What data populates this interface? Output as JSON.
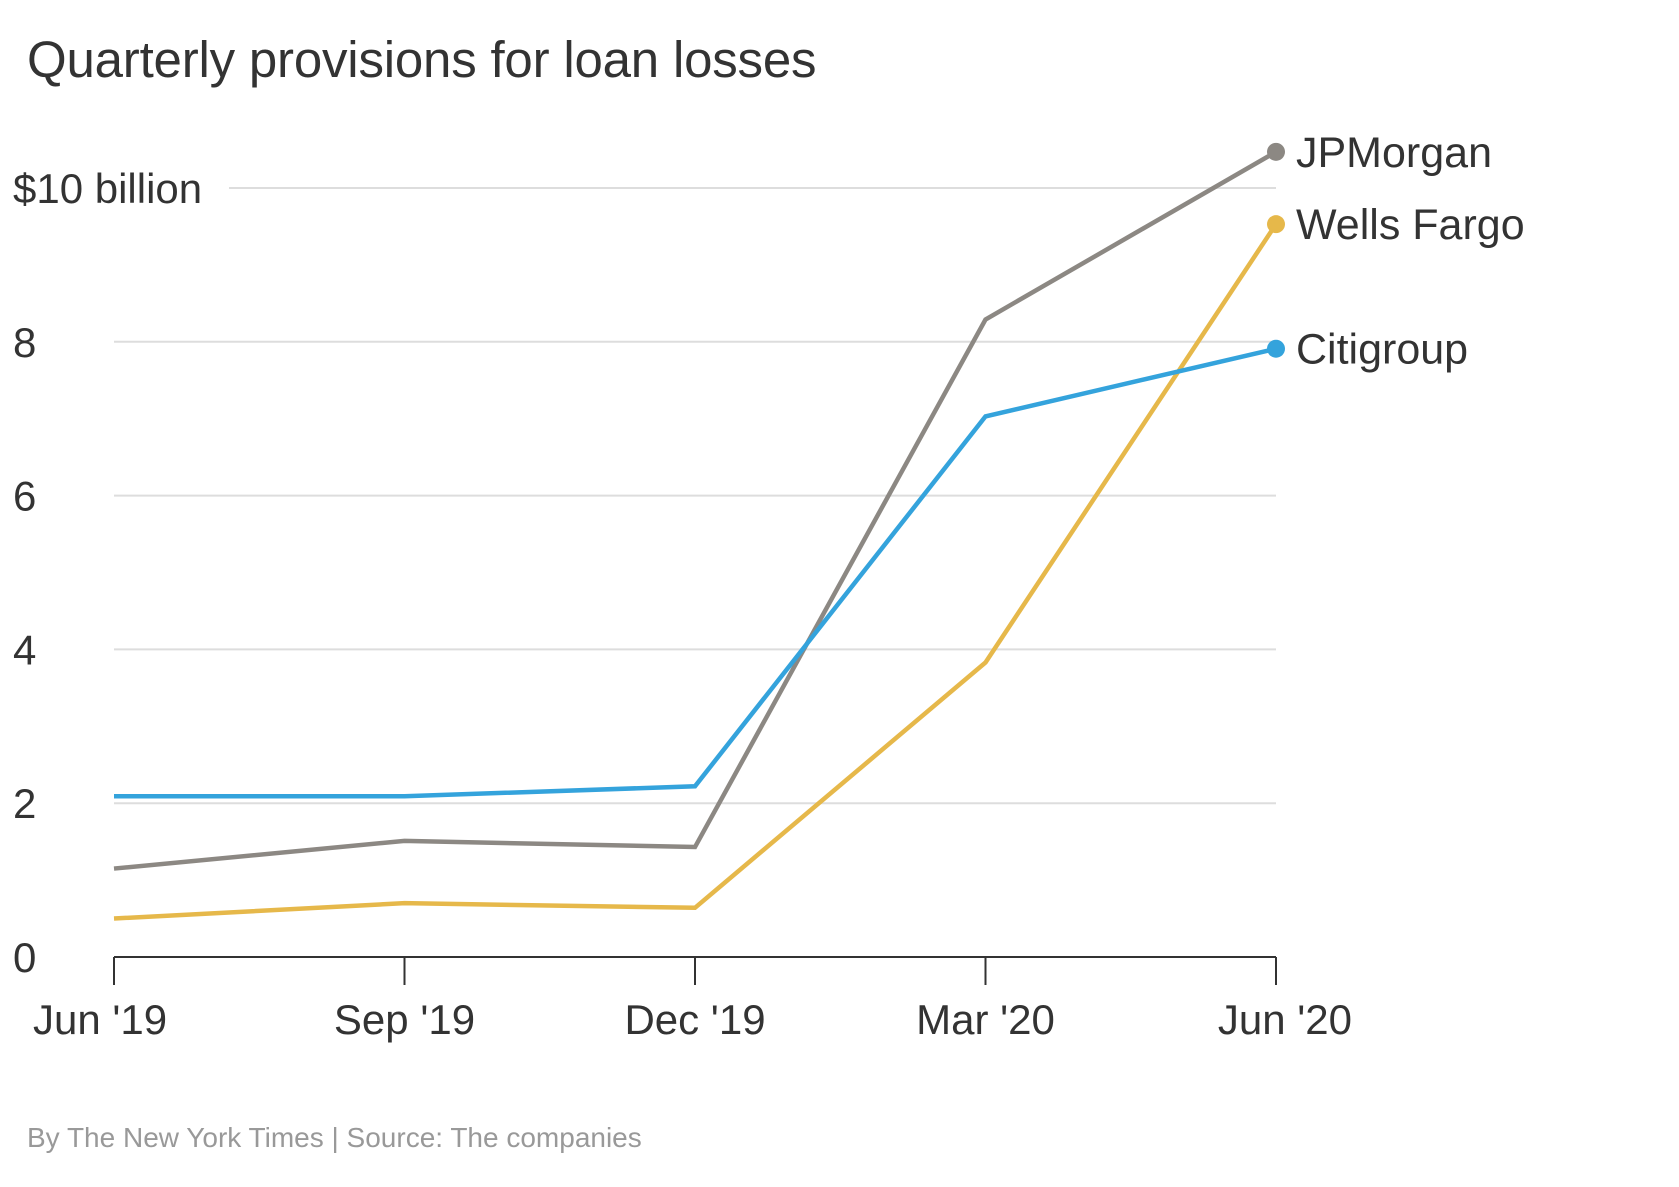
{
  "chart_data": {
    "type": "line",
    "title": "Quarterly provisions for loan losses",
    "x": [
      "Jun '19",
      "Sep '19",
      "Dec '19",
      "Mar '20",
      "Jun '20"
    ],
    "ylim": [
      0,
      10
    ],
    "yticks": [
      {
        "value": 0,
        "label": "0"
      },
      {
        "value": 2,
        "label": "2"
      },
      {
        "value": 4,
        "label": "4"
      },
      {
        "value": 6,
        "label": "6"
      },
      {
        "value": 8,
        "label": "8"
      },
      {
        "value": 10,
        "label": "$10 billion"
      }
    ],
    "grid": true,
    "legend": "direct labels at line ends (right)",
    "series": [
      {
        "name": "JPMorgan",
        "color": "#8c8883",
        "values": [
          1.15,
          1.51,
          1.43,
          8.29,
          10.47
        ]
      },
      {
        "name": "Wells Fargo",
        "color": "#e6b84a",
        "values": [
          0.5,
          0.7,
          0.64,
          3.83,
          9.53
        ]
      },
      {
        "name": "Citigroup",
        "color": "#34a3dc",
        "values": [
          2.09,
          2.09,
          2.22,
          7.03,
          7.91
        ]
      }
    ]
  },
  "credit": "By The New York Times | Source: The companies"
}
